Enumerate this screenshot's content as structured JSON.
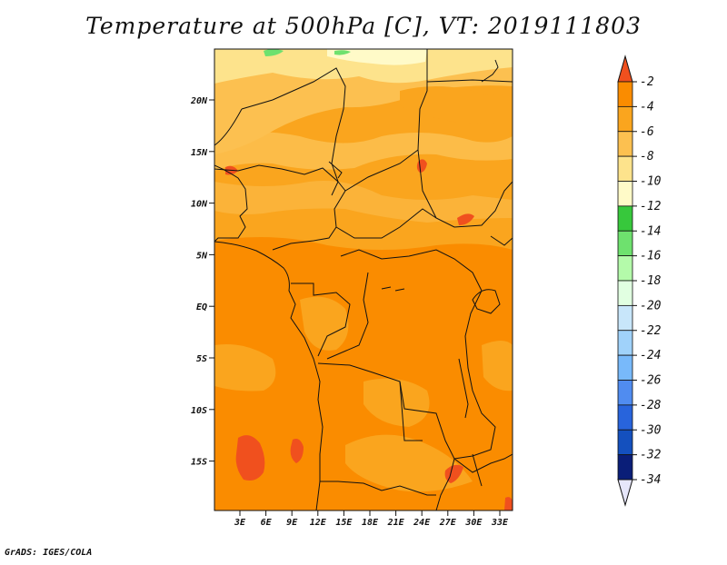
{
  "title": "Temperature at 500hPa [C], VT: 2019111803",
  "credit": "GrADS: IGES/COLA",
  "lat_ticks": [
    "20N",
    "15N",
    "10N",
    "5N",
    "EQ",
    "5S",
    "10S",
    "15S"
  ],
  "lon_ticks": [
    "3E",
    "6E",
    "9E",
    "12E",
    "15E",
    "18E",
    "21E",
    "24E",
    "27E",
    "30E",
    "33E"
  ],
  "colorbar": {
    "labels": [
      "-2",
      "-4",
      "-6",
      "-8",
      "-10",
      "-12",
      "-14",
      "-16",
      "-18",
      "-20",
      "-22",
      "-24",
      "-26",
      "-28",
      "-30",
      "-32",
      "-34"
    ],
    "colors": [
      "#f0501e",
      "#fa8c00",
      "#faa51e",
      "#fcc050",
      "#fde38c",
      "#fffac8",
      "#37c83c",
      "#6ee16e",
      "#b4faaa",
      "#e1ffe1",
      "#c8e6fa",
      "#a0d2fa",
      "#78b9fa",
      "#508cf0",
      "#2864dc",
      "#1450be",
      "#0a1e78",
      "#e6e6fa"
    ]
  },
  "colors": {
    "warmest": "#f0501e",
    "base_fill": "#faa51e",
    "cooler_fill": "#fcc050",
    "north_fill": "#fde38c",
    "coldest_fill": "#fffac8",
    "green_patch": "#37c83c",
    "border": "#111111"
  }
}
